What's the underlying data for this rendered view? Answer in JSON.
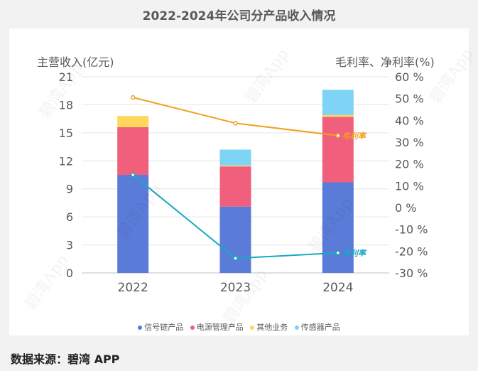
{
  "chart_data": {
    "type": "bar",
    "title": "2022-2024年公司分产品收入情况",
    "ylabel": "主营收入(亿元)",
    "y2label": "毛利率、净利率(%)",
    "categories": [
      "2022",
      "2023",
      "2024"
    ],
    "ylim": [
      0,
      21
    ],
    "yticks": [
      0,
      3,
      6,
      9,
      12,
      15,
      18,
      21
    ],
    "y2lim": [
      -30,
      60
    ],
    "y2ticks": [
      "-30 %",
      "-20 %",
      "-10 %",
      "0 %",
      "10 %",
      "20 %",
      "30 %",
      "40 %",
      "50 %",
      "60 %"
    ],
    "y2tick_values": [
      -30,
      -20,
      -10,
      0,
      10,
      20,
      30,
      40,
      50,
      60
    ],
    "stacked": true,
    "series": [
      {
        "name": "信号链产品",
        "color": "#5b7bd9",
        "values": [
          10.5,
          7.1,
          9.7
        ]
      },
      {
        "name": "电源管理产品",
        "color": "#f0607c",
        "values": [
          5.1,
          4.3,
          7.0
        ]
      },
      {
        "name": "其他业务",
        "color": "#ffd75a",
        "values": [
          1.2,
          0.1,
          0.2
        ]
      },
      {
        "name": "传感器产品",
        "color": "#7fd3f5",
        "values": [
          0.0,
          1.7,
          2.7
        ]
      }
    ],
    "lines": [
      {
        "name": "毛利率",
        "label": "毛利率",
        "color": "#f0a020",
        "axis": "y2",
        "values": [
          50.5,
          38.7,
          33.0
        ]
      },
      {
        "name": "净利率",
        "label": "净利率",
        "color": "#1aa8c0",
        "axis": "y2",
        "values": [
          15.0,
          -23.3,
          -20.8
        ]
      }
    ]
  },
  "legend": [
    "信号链产品",
    "电源管理产品",
    "其他业务",
    "传感器产品"
  ],
  "source": "数据来源：碧湾 APP",
  "watermark": "碧湾App"
}
